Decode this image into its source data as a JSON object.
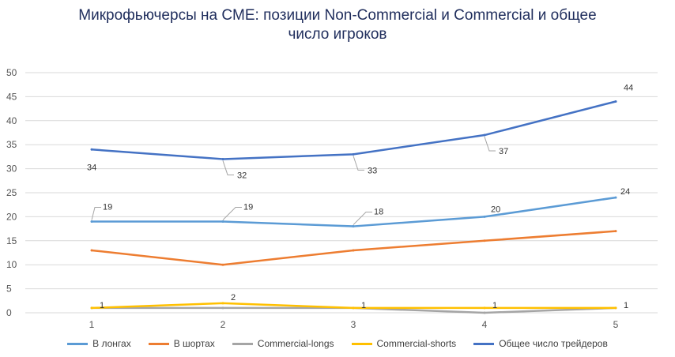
{
  "chart_data": {
    "type": "line",
    "title_lines": [
      "Микрофьючерсы на CME: позиции  Non-Commercial и Commercial и общее",
      "число игроков"
    ],
    "x": [
      "1",
      "2",
      "3",
      "4",
      "5"
    ],
    "ylim": [
      0,
      50
    ],
    "yticks": [
      "0",
      "5",
      "10",
      "15",
      "20",
      "25",
      "30",
      "35",
      "40",
      "45",
      "50"
    ],
    "grid": true,
    "legend_position": "bottom",
    "series": [
      {
        "name": "В лонгах",
        "color": "#5b9bd5",
        "values": [
          19,
          19,
          18,
          20,
          24
        ],
        "labels": [
          "19",
          "19",
          "18",
          "20",
          "24"
        ]
      },
      {
        "name": "В шортах",
        "color": "#ed7d31",
        "values": [
          13,
          10,
          13,
          15,
          17
        ],
        "labels": []
      },
      {
        "name": "Commercial-longs",
        "color": "#a5a5a5",
        "values": [
          1,
          1,
          1,
          0,
          1
        ],
        "labels": []
      },
      {
        "name": "Commercial-shorts",
        "color": "#ffc000",
        "values": [
          1,
          2,
          1,
          1,
          1
        ],
        "labels": [
          "1",
          "2",
          "1",
          "1",
          "1"
        ]
      },
      {
        "name": "Общее число трейдеров",
        "color": "#4472c4",
        "values": [
          34,
          32,
          33,
          37,
          44
        ],
        "labels": [
          "34",
          "32",
          "33",
          "37",
          "44"
        ]
      }
    ]
  }
}
